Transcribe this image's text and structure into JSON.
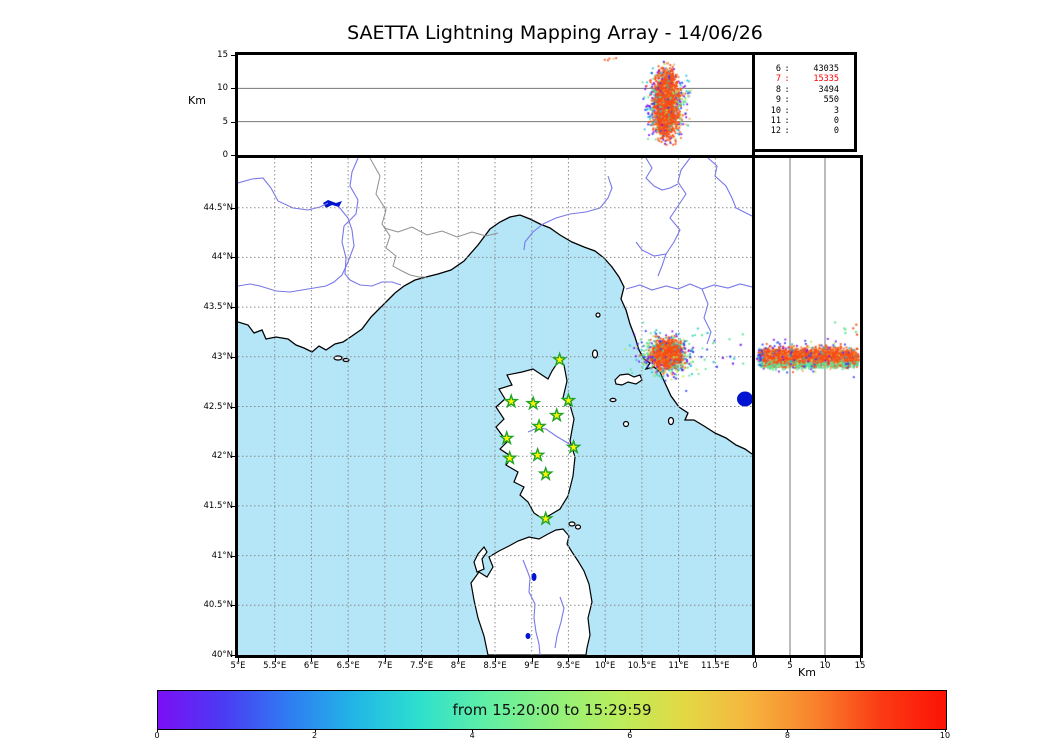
{
  "title": "SAETTA Lightning Mapping Array - 14/06/26",
  "top_panel": {
    "ylabel": "Km",
    "yticks": [
      "0",
      "5",
      "10",
      "15"
    ],
    "grid_km": [
      5,
      10
    ]
  },
  "right_panel": {
    "xlabel": "Km",
    "xticks": [
      "0",
      "5",
      "10",
      "15"
    ],
    "grid_km": [
      5,
      10
    ]
  },
  "stats_panel": {
    "rows": [
      {
        "level": "6",
        "count": "43035",
        "highlight": false
      },
      {
        "level": "7",
        "count": "15335",
        "highlight": true
      },
      {
        "level": "8",
        "count": "3494",
        "highlight": false
      },
      {
        "level": "9",
        "count": "550",
        "highlight": false
      },
      {
        "level": "10",
        "count": "3",
        "highlight": false
      },
      {
        "level": "11",
        "count": "0",
        "highlight": false
      },
      {
        "level": "12",
        "count": "0",
        "highlight": false
      }
    ]
  },
  "map": {
    "lon_ticks": [
      {
        "label": "5°E",
        "lon": 5
      },
      {
        "label": "5.5°E",
        "lon": 5.5
      },
      {
        "label": "6°E",
        "lon": 6
      },
      {
        "label": "6.5°E",
        "lon": 6.5
      },
      {
        "label": "7°E",
        "lon": 7
      },
      {
        "label": "7.5°E",
        "lon": 7.5
      },
      {
        "label": "8°E",
        "lon": 8
      },
      {
        "label": "8.5°E",
        "lon": 8.5
      },
      {
        "label": "9°E",
        "lon": 9
      },
      {
        "label": "9.5°E",
        "lon": 9.5
      },
      {
        "label": "10°E",
        "lon": 10
      },
      {
        "label": "10.5°E",
        "lon": 10.5
      },
      {
        "label": "11°E",
        "lon": 11
      },
      {
        "label": "11.5°E",
        "lon": 11.5
      }
    ],
    "lat_ticks": [
      {
        "label": "44.5°N",
        "lat": 44.5
      },
      {
        "label": "44°N",
        "lat": 44
      },
      {
        "label": "43.5°N",
        "lat": 43.5
      },
      {
        "label": "43°N",
        "lat": 43
      },
      {
        "label": "42.5°N",
        "lat": 42.5
      },
      {
        "label": "42°N",
        "lat": 42
      },
      {
        "label": "41.5°N",
        "lat": 41.5
      },
      {
        "label": "41°N",
        "lat": 41
      },
      {
        "label": "40.5°N",
        "lat": 40.5
      },
      {
        "label": "40°N",
        "lat": 40
      }
    ],
    "grid_lons": [
      5.5,
      6,
      6.5,
      7,
      7.5,
      8,
      8.5,
      9,
      9.5,
      10,
      10.5,
      11,
      11.5
    ],
    "grid_lats": [
      40.5,
      41,
      41.5,
      42,
      42.5,
      43,
      43.5,
      44,
      44.5
    ]
  },
  "colorbar": {
    "label": "from 15:20:00 to 15:29:59",
    "ticks": [
      "0",
      "2",
      "4",
      "6",
      "8",
      "10"
    ],
    "gradient": [
      "#7a0ff5",
      "#4b3bf3",
      "#2f7df2",
      "#21b6e6",
      "#2fe0cd",
      "#60efa5",
      "#8ff07d",
      "#baee5c",
      "#e3d944",
      "#f5b53e",
      "#f9822d",
      "#fb3b14",
      "#fc1205"
    ]
  },
  "colors": {
    "sea": "#b5e6f7",
    "land": "#ffffff",
    "river": "#7878ea",
    "border_line": "#8f8f8f",
    "map_grid": "#8a8a8a",
    "panel_grid": "#777777",
    "lake": "#0014d2",
    "star_fill": "#fdf400",
    "star_stroke": "#1fa426"
  },
  "palette": {
    "core": "#f84c15",
    "core2": "#f07a30",
    "purple": "#8012ee",
    "blue": "#2a3cf2",
    "cyan": "#1cc3d6",
    "green": "#5fe394",
    "sand": "#f0ae62",
    "lime": "#b8ea55"
  },
  "chart_data": [
    {
      "type": "scatter",
      "panel": "altitude-vs-longitude",
      "x_range_deg": [
        5,
        12
      ],
      "y_range_km": [
        0,
        15
      ],
      "ylabel": "Km",
      "grid_y_km": [
        5,
        10
      ],
      "cluster": {
        "center_lon": 10.82,
        "sigma_lon_core": 0.075,
        "sigma_lon_fringe": 0.16,
        "alt_min_km": 1.0,
        "alt_max_km": 14.6,
        "n_points": 2600
      }
    },
    {
      "type": "scatter",
      "panel": "map-longitude-vs-latitude",
      "lon_range": [
        5,
        12
      ],
      "lat_range": [
        40,
        45
      ],
      "cluster": {
        "center_lon": 10.83,
        "center_lat": 43.03,
        "sigma_lon": 0.095,
        "sigma_lat": 0.06,
        "n_points": 2300,
        "outliers": {
          "lon_range": [
            11.1,
            11.9
          ],
          "lat_range": [
            42.9,
            43.25
          ],
          "n": 16
        }
      },
      "stations": [
        {
          "lon": 9.38,
          "lat": 42.97
        },
        {
          "lon": 8.72,
          "lat": 42.55
        },
        {
          "lon": 9.02,
          "lat": 42.53
        },
        {
          "lon": 9.5,
          "lat": 42.56
        },
        {
          "lon": 9.34,
          "lat": 42.41
        },
        {
          "lon": 9.1,
          "lat": 42.3
        },
        {
          "lon": 8.66,
          "lat": 42.18
        },
        {
          "lon": 9.57,
          "lat": 42.09
        },
        {
          "lon": 8.7,
          "lat": 41.98
        },
        {
          "lon": 9.08,
          "lat": 42.01
        },
        {
          "lon": 9.19,
          "lat": 41.82
        },
        {
          "lon": 9.19,
          "lat": 41.37
        }
      ]
    },
    {
      "type": "scatter",
      "panel": "altitude-vs-latitude",
      "x_range_km": [
        0,
        15
      ],
      "xlabel": "Km",
      "lat_range": [
        40,
        45
      ],
      "grid_x_km": [
        5,
        10
      ],
      "cluster": {
        "center_lat": 43.01,
        "sigma_lat": 0.042,
        "green_band_lat": 42.93,
        "alt_min_km": 0.4,
        "alt_max_km": 14.6,
        "n_points": 3200,
        "outliers_n": 8
      }
    },
    {
      "type": "colorbar",
      "label": "from 15:20:00 to 15:29:59",
      "ticks": [
        0,
        2,
        4,
        6,
        8,
        10
      ],
      "range": [
        0,
        10
      ]
    },
    {
      "type": "table",
      "panel": "sources-per-level",
      "columns": [
        "level",
        "source_count"
      ],
      "rows": [
        [
          6,
          43035
        ],
        [
          7,
          15335
        ],
        [
          8,
          3494
        ],
        [
          9,
          550
        ],
        [
          10,
          3
        ],
        [
          11,
          0
        ],
        [
          12,
          0
        ]
      ],
      "highlighted_level": 7
    }
  ]
}
